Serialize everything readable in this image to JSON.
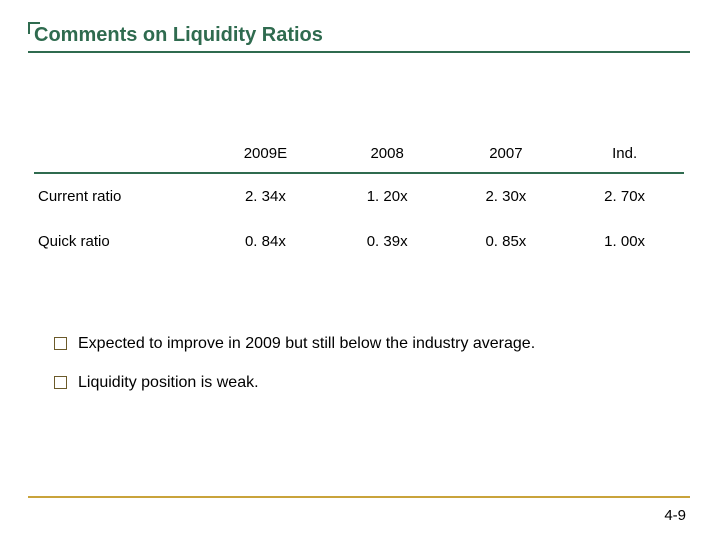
{
  "colors": {
    "accent": "#2f6b4f",
    "text": "#222222",
    "bullet_border": "#6b5a2a",
    "footer_line": "#c9a33b"
  },
  "title": "Comments on Liquidity Ratios",
  "table": {
    "header_border_color": "#2f6b4f",
    "columns": [
      "",
      "2009E",
      "2008",
      "2007",
      "Ind."
    ],
    "rows": [
      {
        "label": "Current ratio",
        "cells": [
          "2. 34x",
          "1. 20x",
          "2. 30x",
          "2. 70x"
        ]
      },
      {
        "label": "Quick ratio",
        "cells": [
          "0. 84x",
          "0. 39x",
          "0. 85x",
          "1. 00x"
        ]
      }
    ]
  },
  "bullets": [
    "Expected to improve in 2009 but still below the industry average.",
    "Liquidity position is weak."
  ],
  "slide_number": "4-9"
}
